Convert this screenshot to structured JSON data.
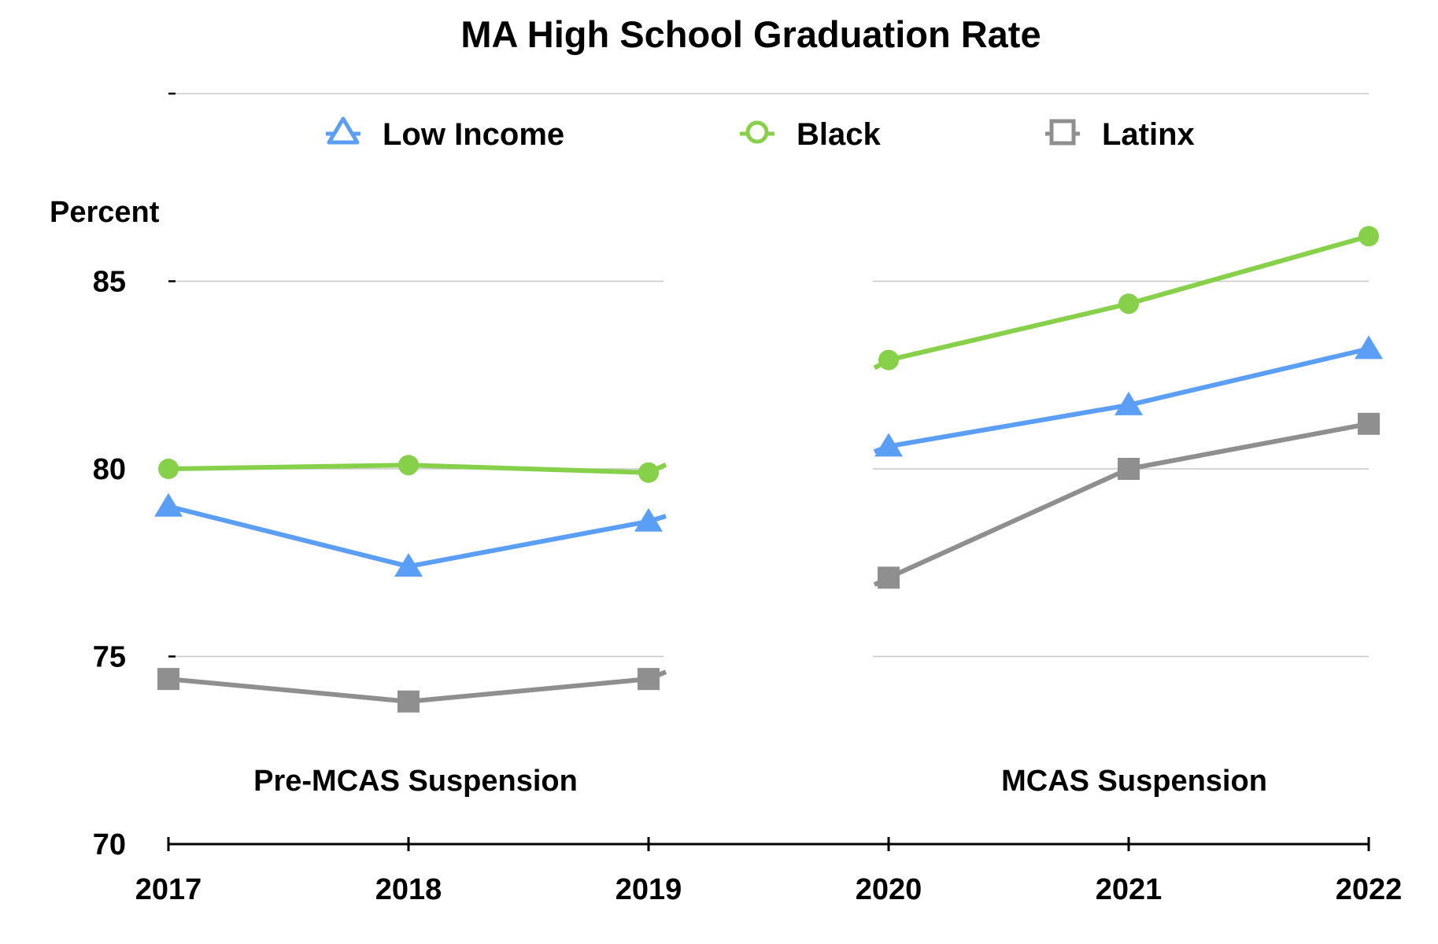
{
  "chart_data": {
    "type": "line",
    "title": "MA High School Graduation Rate",
    "ylabel": "Percent",
    "xlabel": "",
    "categories": [
      "2017",
      "2018",
      "2019",
      "2020",
      "2021",
      "2022"
    ],
    "ylim": [
      70,
      90
    ],
    "yticks": [
      70,
      75,
      80,
      85
    ],
    "grid": true,
    "legend_position": "top",
    "section_labels": [
      "Pre-MCAS Suspension",
      "MCAS Suspension"
    ],
    "series": [
      {
        "name": "Low Income",
        "marker": "triangle",
        "color": "#5b9ef5",
        "values": [
          79.0,
          77.4,
          78.6,
          80.6,
          81.7,
          83.2
        ]
      },
      {
        "name": "Black",
        "marker": "circle",
        "color": "#86d04a",
        "values": [
          80.0,
          80.1,
          79.9,
          82.9,
          84.4,
          86.2
        ]
      },
      {
        "name": "Latinx",
        "marker": "square",
        "color": "#8f8f8f",
        "values": [
          74.4,
          73.8,
          74.4,
          77.1,
          80.0,
          81.2
        ]
      }
    ]
  }
}
